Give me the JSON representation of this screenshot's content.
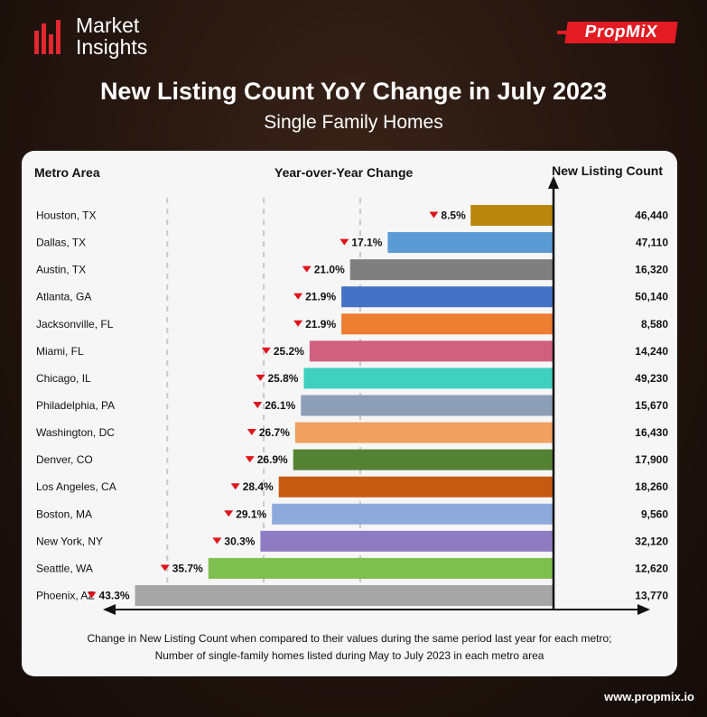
{
  "brand": {
    "line1": "Market",
    "line2": "Insights",
    "partner": "PropMiX",
    "url": "www.propmix.io"
  },
  "header": {
    "title": "New Listing Count YoY Change in July 2023",
    "subtitle": "Single Family Homes"
  },
  "columns": {
    "metro": "Metro Area",
    "yoy": "Year-over-Year Change",
    "count": "New Listing Count"
  },
  "footnote": {
    "line1": "Change in New Listing Count when compared to their values during the same period last year for each metro;",
    "line2": "Number of single-family homes listed during May to July 2023 in each metro area"
  },
  "colors": {
    "accent": "#e31b23",
    "down_arrow": "#e0141c",
    "background": "#24150f"
  },
  "chart_data": {
    "type": "bar",
    "orientation": "horizontal",
    "xlabel": "Year-over-Year Change",
    "xlim": [
      -45,
      0
    ],
    "categories": [
      "Houston, TX",
      "Dallas, TX",
      "Austin, TX",
      "Atlanta, GA",
      "Jacksonville, FL",
      "Miami, FL",
      "Chicago, IL",
      "Philadelphia, PA",
      "Washington, DC",
      "Denver, CO",
      "Los Angeles, CA",
      "Boston, MA",
      "New York, NY",
      "Seattle, WA",
      "Phoenix, AZ"
    ],
    "values": [
      -8.5,
      -17.1,
      -21.0,
      -21.9,
      -21.9,
      -25.2,
      -25.8,
      -26.1,
      -26.7,
      -26.9,
      -28.4,
      -29.1,
      -30.3,
      -35.7,
      -43.3
    ],
    "value_labels": [
      "8.5%",
      "17.1%",
      "21.0%",
      "21.9%",
      "21.9%",
      "25.2%",
      "25.8%",
      "26.1%",
      "26.7%",
      "26.9%",
      "28.4%",
      "29.1%",
      "30.3%",
      "35.7%",
      "43.3%"
    ],
    "new_listing_count": [
      "46,440",
      "47,110",
      "16,320",
      "50,140",
      "8,580",
      "14,240",
      "49,230",
      "15,670",
      "16,430",
      "17,900",
      "18,260",
      "9,560",
      "32,120",
      "12,620",
      "13,770"
    ],
    "bar_colors": [
      "#b8860b",
      "#5b9bd5",
      "#7f7f7f",
      "#4472c4",
      "#ed7d31",
      "#d0607f",
      "#40d0c0",
      "#8c9fb7",
      "#f0a060",
      "#548235",
      "#c55a11",
      "#8eaadb",
      "#8e7cc3",
      "#7fbf50",
      "#a6a6a6"
    ],
    "grid": true
  }
}
